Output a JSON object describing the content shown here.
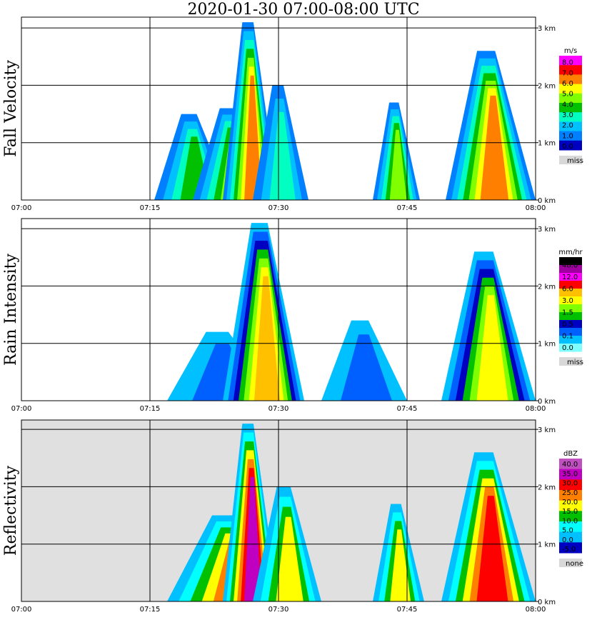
{
  "title": "2020-01-30   07:00-08:00 UTC",
  "chart_data": [
    {
      "type": "heatmap",
      "ylabel": "Fall Velocity",
      "x_ticks": [
        "07:00",
        "07:15",
        "07:30",
        "07:45",
        "08:00"
      ],
      "y_ticks": [
        "0 km",
        "1 km",
        "2 km",
        "3 km"
      ],
      "ylim_km": [
        0,
        3.1
      ],
      "grid": true,
      "background": "#ffffff",
      "colorbar": {
        "unit": "m/s",
        "labels": [
          "8.0",
          "7.0",
          "6.0",
          "5.0",
          "4.0",
          "3.0",
          "2.0",
          "1.0",
          "0.0"
        ],
        "colors": [
          "#ff00ff",
          "#ff0000",
          "#ff8000",
          "#ffff00",
          "#80ff00",
          "#00c000",
          "#00ffc0",
          "#00c0ff",
          "#0080ff",
          "#0000c0"
        ],
        "missing_label": "miss",
        "missing_color": "#d8d8d8"
      },
      "echoes": [
        {
          "t0": 15.5,
          "t1": 24.5,
          "top": 1.5,
          "level": 4
        },
        {
          "t0": 20,
          "t1": 29,
          "top": 1.6,
          "level": 5
        },
        {
          "t0": 23.5,
          "t1": 30,
          "top": 3.1,
          "level": 7
        },
        {
          "t0": 27,
          "t1": 33.5,
          "top": 2.0,
          "level": 3
        },
        {
          "t0": 41,
          "t1": 46.5,
          "top": 1.7,
          "level": 5
        },
        {
          "t0": 49.5,
          "t1": 60,
          "top": 2.6,
          "level": 7
        }
      ]
    },
    {
      "type": "heatmap",
      "ylabel": "Rain Intensity",
      "x_ticks": [
        "07:00",
        "07:15",
        "07:30",
        "07:45",
        "08:00"
      ],
      "y_ticks": [
        "0 km",
        "1 km",
        "2 km",
        "3 km"
      ],
      "ylim_km": [
        0,
        3.1
      ],
      "grid": true,
      "background": "#ffffff",
      "colorbar": {
        "unit": "mm/hr",
        "labels": [
          "48.0",
          "12.0",
          "6.0",
          "3.0",
          "1.5",
          "0.5",
          "0.1",
          "0.0"
        ],
        "colors": [
          "#000000",
          "#a000a0",
          "#ff00ff",
          "#ff0000",
          "#ffc000",
          "#ffff00",
          "#80ff00",
          "#00c000",
          "#0000c0",
          "#0060ff",
          "#00c0ff",
          "#80ffff"
        ],
        "missing_label": "miss",
        "missing_color": "#d8d8d8"
      },
      "echoes": [
        {
          "t0": 17,
          "t1": 30,
          "top": 1.2,
          "level": 1
        },
        {
          "t0": 23.5,
          "t1": 33,
          "top": 3.1,
          "level": 7
        },
        {
          "t0": 35,
          "t1": 45,
          "top": 1.4,
          "level": 1
        },
        {
          "t0": 49,
          "t1": 60,
          "top": 2.6,
          "level": 6
        }
      ]
    },
    {
      "type": "heatmap",
      "ylabel": "Reflectivity",
      "x_ticks": [
        "07:00",
        "07:15",
        "07:30",
        "07:45",
        "08:00"
      ],
      "y_ticks": [
        "0 km",
        "1 km",
        "2 km",
        "3 km"
      ],
      "ylim_km": [
        0,
        3.1
      ],
      "grid": true,
      "background": "#e0e0e0",
      "colorbar": {
        "unit": "dBZ",
        "labels": [
          "40.0",
          "35.0",
          "30.0",
          "25.0",
          "20.0",
          "15.0",
          "10.0",
          "5.0",
          "0.0",
          "-5.0"
        ],
        "colors": [
          "#c050c0",
          "#c000c0",
          "#ff0000",
          "#ff8000",
          "#ffff00",
          "#00c000",
          "#00ffff",
          "#00c0ff",
          "#0000c0"
        ],
        "missing_label": "none",
        "missing_color": "#d8d8d8"
      },
      "echoes": [
        {
          "t0": 17,
          "t1": 32,
          "top": 1.5,
          "level": 5
        },
        {
          "t0": 23.5,
          "t1": 30,
          "top": 3.1,
          "level": 7
        },
        {
          "t0": 27,
          "t1": 35,
          "top": 2.0,
          "level": 4
        },
        {
          "t0": 41,
          "t1": 47,
          "top": 1.7,
          "level": 4
        },
        {
          "t0": 49,
          "t1": 60,
          "top": 2.6,
          "level": 6
        }
      ]
    }
  ]
}
